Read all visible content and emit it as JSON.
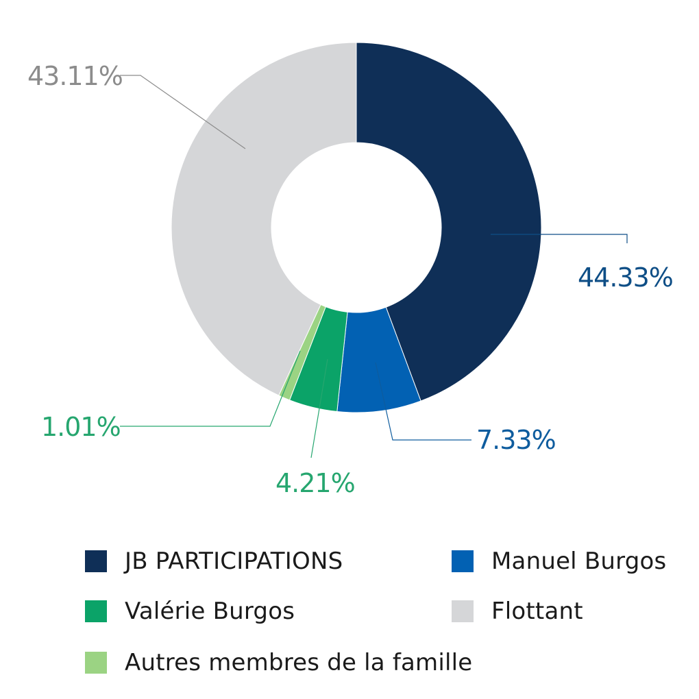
{
  "chart_data": {
    "type": "pie",
    "variant": "donut",
    "unit": "%",
    "slices": [
      {
        "name": "JB PARTICIPATIONS",
        "value": 44.33,
        "label": "44.33%",
        "color": "#0f2f57",
        "label_color": "#0e4e86"
      },
      {
        "name": "Manuel Burgos",
        "value": 7.33,
        "label": "7.33%",
        "color": "#0261b3",
        "label_color": "#0e5c9e"
      },
      {
        "name": "Valérie Burgos",
        "value": 4.21,
        "label": "4.21%",
        "color": "#0ba368",
        "label_color": "#26a66f"
      },
      {
        "name": "Autres membres de la famille",
        "value": 1.01,
        "label": "1.01%",
        "color": "#9bd383",
        "label_color": "#26a66f"
      },
      {
        "name": "Flottant",
        "value": 43.11,
        "label": "43.11%",
        "color": "#d5d6d8",
        "label_color": "#8c8c8c"
      }
    ],
    "legend": {
      "placement": "bottom",
      "items": [
        {
          "label": "JB PARTICIPATIONS",
          "color": "#0f2f57"
        },
        {
          "label": "Manuel Burgos",
          "color": "#0261b3"
        },
        {
          "label": "Valérie Burgos",
          "color": "#0ba368"
        },
        {
          "label": "Flottant",
          "color": "#d5d6d8"
        },
        {
          "label": "Autres membres de la famille",
          "color": "#9bd383"
        }
      ]
    }
  }
}
